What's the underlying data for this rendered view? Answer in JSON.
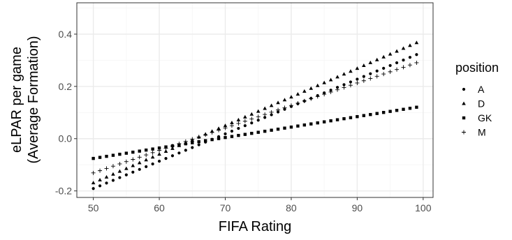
{
  "chart_data": {
    "type": "scatter",
    "xlabel": "FIFA Rating",
    "ylabel_lines": [
      "eLPAR per game",
      "(Average Formation)"
    ],
    "xlim": [
      47.5,
      101.5
    ],
    "ylim": [
      -0.225,
      0.52
    ],
    "x_ticks": [
      50,
      60,
      70,
      80,
      90,
      100
    ],
    "x_tick_labels": [
      "50",
      "60",
      "70",
      "80",
      "90",
      "100"
    ],
    "y_ticks": [
      -0.2,
      0.0,
      0.2,
      0.4
    ],
    "y_tick_labels": [
      "-0.2",
      "0.0",
      "0.2",
      "0.4"
    ],
    "x_minor_ticks": [
      55,
      65,
      75,
      85,
      95
    ],
    "y_minor_ticks": [
      -0.1,
      0.1,
      0.3,
      0.5
    ],
    "grid": true,
    "legend": {
      "title": "position",
      "placement": "right",
      "entries": [
        {
          "label": "A",
          "shape": "circle"
        },
        {
          "label": "D",
          "shape": "triangle"
        },
        {
          "label": "GK",
          "shape": "square"
        },
        {
          "label": "M",
          "shape": "plus"
        }
      ]
    },
    "x_range": [
      50,
      99
    ],
    "series": [
      {
        "name": "A",
        "shape": "circle",
        "intercept": -0.7141,
        "slope": 0.010463
      },
      {
        "name": "D",
        "shape": "triangle",
        "intercept": -0.7165,
        "slope": 0.010947
      },
      {
        "name": "GK",
        "shape": "square",
        "intercept": -0.2757,
        "slope": 0.004
      },
      {
        "name": "M",
        "shape": "plus",
        "intercept": -0.5612,
        "slope": 0.008602
      }
    ],
    "colors": {
      "points": "#000000",
      "grid_major": "#ebebeb",
      "grid_minor": "#f5f5f5",
      "panel_border": "#333333"
    }
  }
}
